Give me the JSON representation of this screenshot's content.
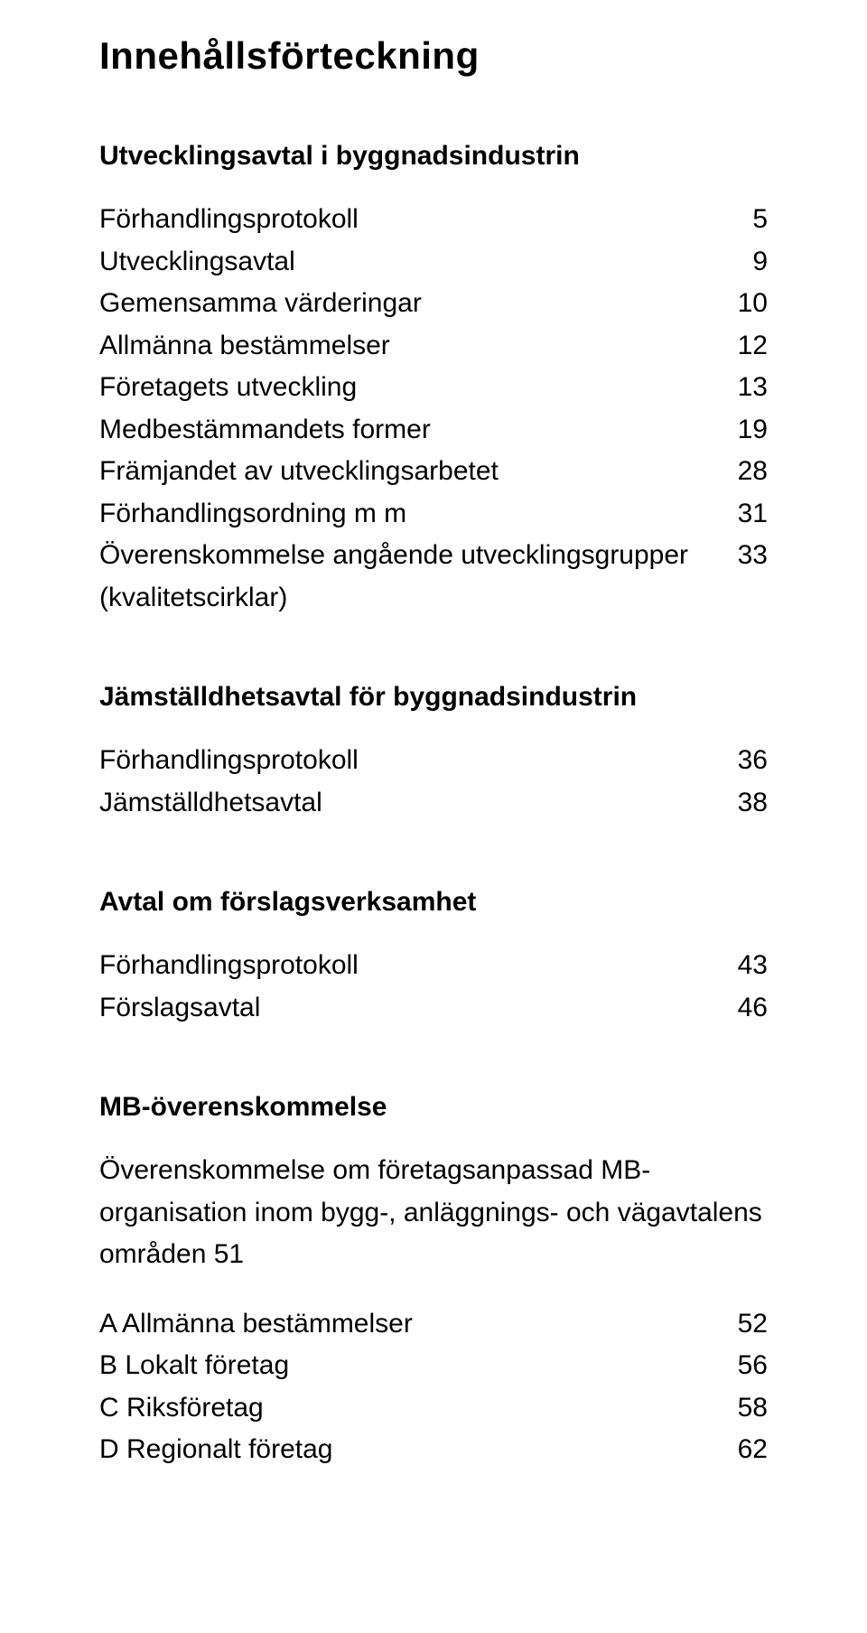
{
  "title": "Innehållsförteckning",
  "sections": [
    {
      "heading": "Utvecklingsavtal i byggnadsindustrin",
      "items": [
        {
          "label": "Förhandlingsprotokoll",
          "page": "5"
        },
        {
          "label": "Utvecklingsavtal",
          "page": "9"
        },
        {
          "label": "Gemensamma värderingar",
          "page": "10"
        },
        {
          "label": "Allmänna bestämmelser",
          "page": "12"
        },
        {
          "label": "Företagets utveckling",
          "page": "13"
        },
        {
          "label": "Medbestämmandets former",
          "page": "19"
        },
        {
          "label": "Främjandet av utvecklingsarbetet",
          "page": "28"
        },
        {
          "label": "Förhandlingsordning m m",
          "page": "31"
        },
        {
          "label": "Överenskommelse angående utvecklingsgrupper",
          "page": "33",
          "cont": "(kvalitetscirklar)"
        }
      ]
    },
    {
      "heading": "Jämställdhetsavtal för byggnadsindustrin",
      "items": [
        {
          "label": "Förhandlingsprotokoll",
          "page": "36"
        },
        {
          "label": "Jämställdhetsavtal",
          "page": "38"
        }
      ]
    },
    {
      "heading": "Avtal om förslagsverksamhet",
      "items": [
        {
          "label": "Förhandlingsprotokoll",
          "page": "43"
        },
        {
          "label": "Förslagsavtal",
          "page": "46"
        }
      ]
    },
    {
      "heading": "MB-överenskommelse",
      "desc": "Överenskommelse om företagsanpassad MB-organisation inom bygg-, anläggnings- och vägavtalens områden 51",
      "items": [
        {
          "label": "A  Allmänna bestämmelser",
          "page": "52"
        },
        {
          "label": "B  Lokalt företag",
          "page": "56"
        },
        {
          "label": "C  Riksföretag",
          "page": "58"
        },
        {
          "label": "D  Regionalt företag",
          "page": "62"
        }
      ]
    }
  ]
}
